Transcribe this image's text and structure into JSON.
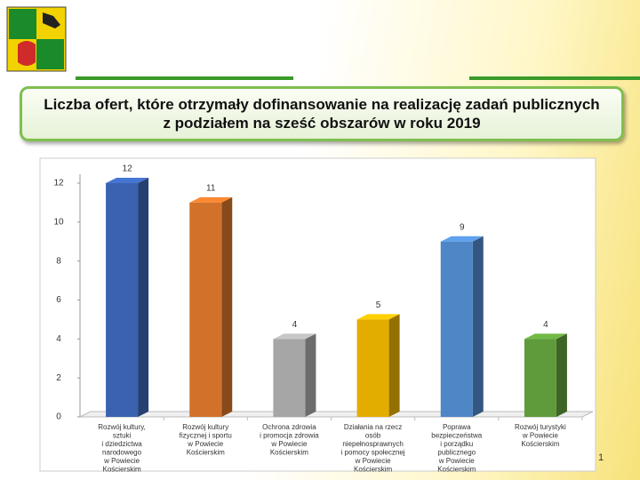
{
  "chart_data": {
    "type": "bar",
    "title": "Liczba ofert, które otrzymały dofinansowanie na realizację zadań publicznych z podziałem na sześć obszarów w roku 2019",
    "categories": [
      "Rozwój kultury,\nsztuki\ni dziedzictwa\nnarodowego\nw Powiecie\nKościerskim",
      "Rozwój kultury\nfizycznej i sportu\nw Powiecie\nKościerskim",
      "Ochrona zdrowia\ni promocja zdrowia\nw Powiecie\nKościerskim",
      "Działania na rzecz\nosób\nniepełnosprawnych\ni pomocy społecznej\nw Powiecie\nKościerskim",
      "Poprawa\nbezpieczeństwa\ni porządku\npublicznego\nw Powiecie\nKościerskim",
      "Rozwój turystyki\nw Powiecie\nKościerskim"
    ],
    "values": [
      12,
      11,
      4,
      5,
      9,
      4
    ],
    "colors": [
      "#3a62b0",
      "#d2722a",
      "#a6a6a6",
      "#e3ad00",
      "#4f86c6",
      "#5f9b3a"
    ],
    "ylim": [
      0,
      12
    ],
    "yticks": [
      0,
      2,
      4,
      6,
      8,
      10,
      12
    ],
    "page_number": "1"
  }
}
